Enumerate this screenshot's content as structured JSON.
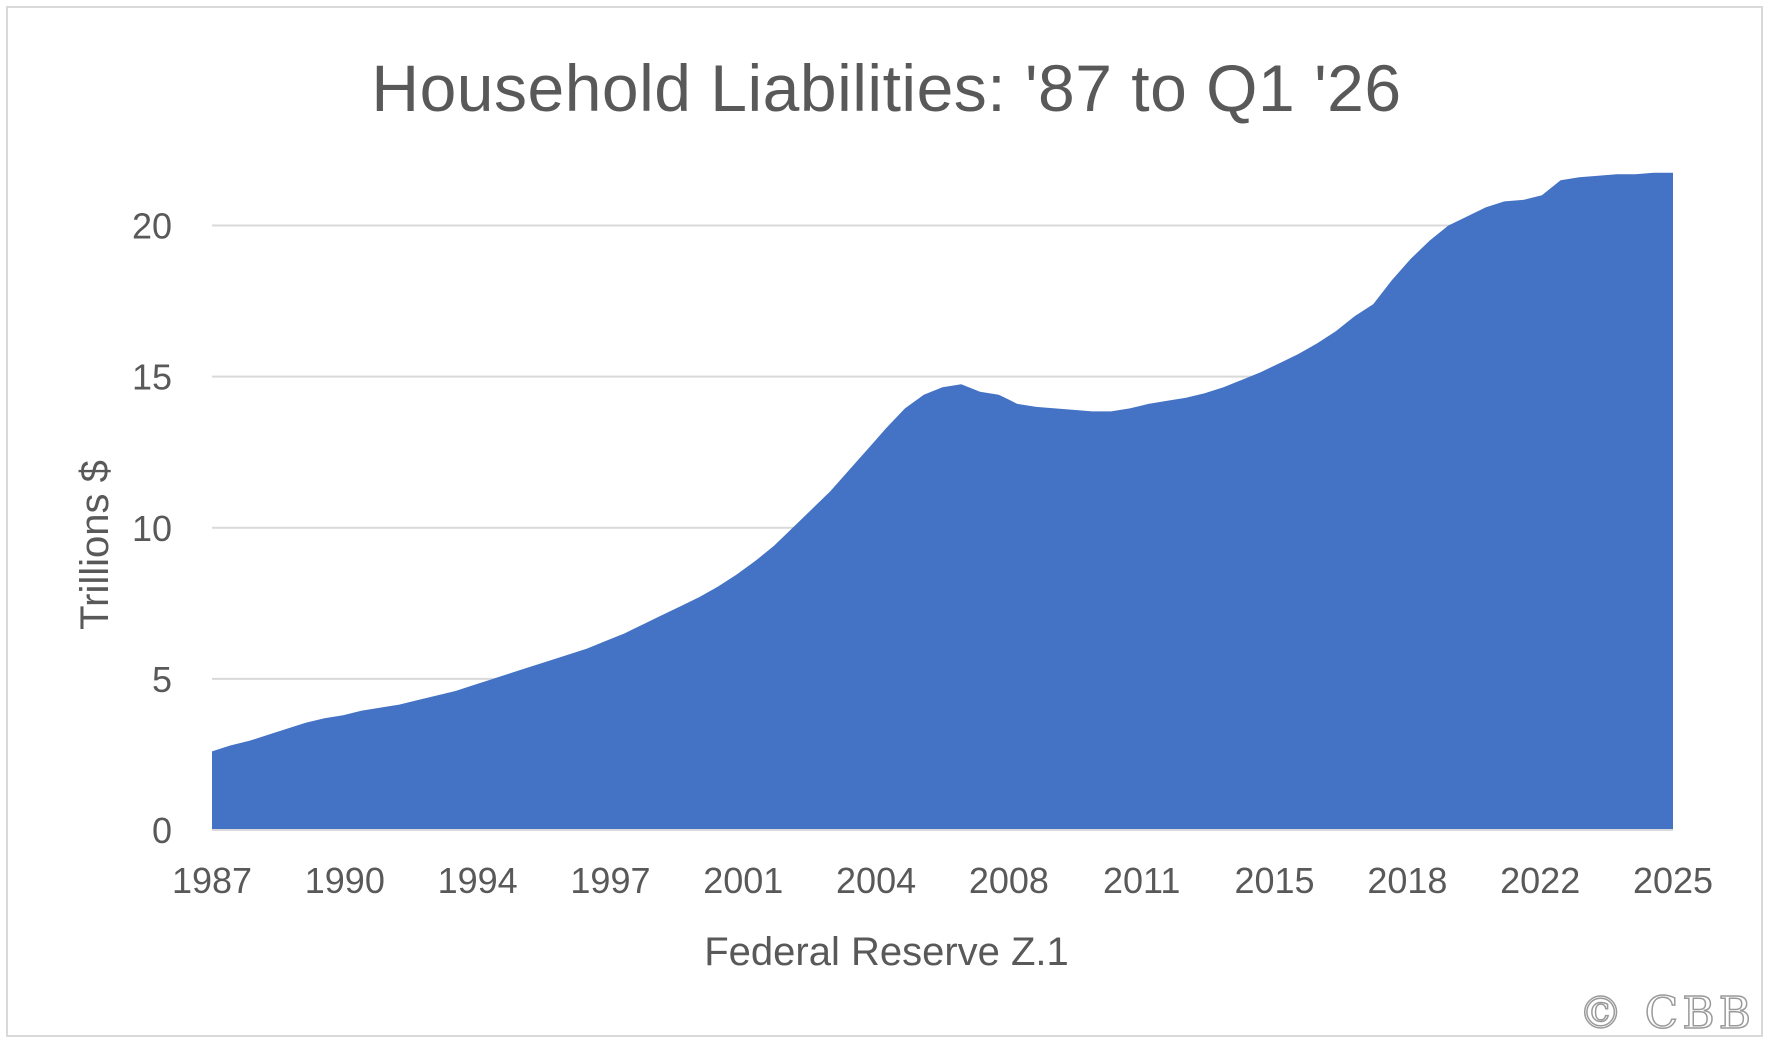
{
  "chart_data": {
    "type": "area",
    "title": "Household Liabilities: '87 to Q1 '26",
    "xlabel": "Federal Reserve Z.1",
    "ylabel": "Trillions $",
    "xlim": [
      1987.0,
      2026.0
    ],
    "ylim": [
      0,
      22.5
    ],
    "yticks": [
      0,
      5,
      10,
      15,
      20
    ],
    "xticks": [
      "1987",
      "1990",
      "1994",
      "1997",
      "2001",
      "2004",
      "2008",
      "2011",
      "2015",
      "2018",
      "2022",
      "2025"
    ],
    "grid": "horizontal",
    "color": "#4472c4",
    "series": [
      {
        "x": [
          1987.0,
          1987.5,
          1988.0,
          1988.5,
          1989.0,
          1989.5,
          1990.0,
          1990.5,
          1991.0,
          1991.5,
          1992.0,
          1992.5,
          1993.0,
          1993.5,
          1994.0,
          1994.5,
          1995.0,
          1995.5,
          1996.0,
          1996.5,
          1997.0,
          1997.5,
          1998.0,
          1998.5,
          1999.0,
          1999.5,
          2000.0,
          2000.5,
          2001.0,
          2001.5,
          2002.0,
          2002.5,
          2003.0,
          2003.5,
          2004.0,
          2004.5,
          2005.0,
          2005.5,
          2006.0,
          2006.5,
          2007.0,
          2007.5,
          2008.0,
          2008.25,
          2008.5,
          2009.0,
          2009.5,
          2010.0,
          2010.5,
          2011.0,
          2011.5,
          2012.0,
          2012.5,
          2013.0,
          2013.5,
          2014.0,
          2014.5,
          2015.0,
          2015.5,
          2016.0,
          2016.5,
          2017.0,
          2017.5,
          2018.0,
          2018.5,
          2019.0,
          2019.5,
          2020.0,
          2020.5,
          2021.0,
          2021.5,
          2022.0,
          2022.5,
          2023.0,
          2023.5,
          2024.0,
          2024.5,
          2025.0,
          2025.5,
          2026.0
        ],
        "y": [
          2.6,
          2.8,
          2.95,
          3.15,
          3.35,
          3.55,
          3.7,
          3.8,
          3.95,
          4.05,
          4.15,
          4.3,
          4.45,
          4.6,
          4.8,
          5.0,
          5.2,
          5.4,
          5.6,
          5.8,
          6.0,
          6.25,
          6.5,
          6.8,
          7.1,
          7.4,
          7.7,
          8.05,
          8.45,
          8.9,
          9.4,
          10.0,
          10.6,
          11.2,
          11.9,
          12.6,
          13.3,
          13.95,
          14.4,
          14.65,
          14.75,
          14.5,
          14.4,
          14.25,
          14.1,
          14.0,
          13.95,
          13.9,
          13.85,
          13.85,
          13.95,
          14.1,
          14.2,
          14.3,
          14.45,
          14.65,
          14.9,
          15.15,
          15.45,
          15.75,
          16.1,
          16.5,
          17.0,
          17.4,
          18.2,
          18.9,
          19.5,
          20.0,
          20.3,
          20.6,
          20.8,
          20.85,
          21.0,
          21.5,
          21.6,
          21.65,
          21.7,
          21.7,
          21.75,
          21.75
        ]
      }
    ]
  },
  "watermark": "© CBB"
}
